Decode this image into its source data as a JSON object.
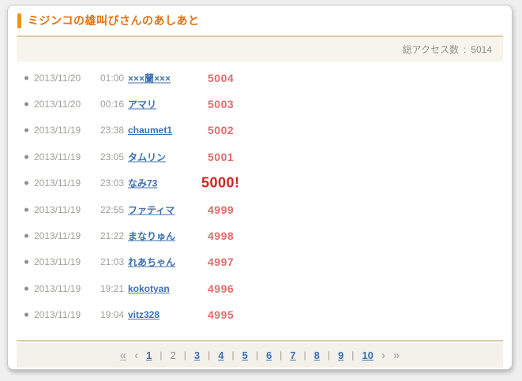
{
  "header": {
    "title": "ミジンコの雄叫びさんのあしあと"
  },
  "stats": {
    "label": "総アクセス数",
    "separator": ":",
    "value": "5014"
  },
  "visitors": [
    {
      "date": "2013/11/20",
      "time": "01:00",
      "user": "×××蘭×××",
      "count": "5004",
      "highlight": false
    },
    {
      "date": "2013/11/20",
      "time": "00:16",
      "user": "アマリ",
      "count": "5003",
      "highlight": false
    },
    {
      "date": "2013/11/19",
      "time": "23:38",
      "user": "chaumet1",
      "count": "5002",
      "highlight": false
    },
    {
      "date": "2013/11/19",
      "time": "23:05",
      "user": "タムリン",
      "count": "5001",
      "highlight": false
    },
    {
      "date": "2013/11/19",
      "time": "23:03",
      "user": "なみ73",
      "count": "5000!",
      "highlight": true
    },
    {
      "date": "2013/11/19",
      "time": "22:55",
      "user": "ファティマ",
      "count": "4999",
      "highlight": false
    },
    {
      "date": "2013/11/19",
      "time": "21:22",
      "user": "まなりゅん",
      "count": "4998",
      "highlight": false
    },
    {
      "date": "2013/11/19",
      "time": "21:03",
      "user": "れあちゃん",
      "count": "4997",
      "highlight": false
    },
    {
      "date": "2013/11/19",
      "time": "19:21",
      "user": "kokotyan",
      "count": "4996",
      "highlight": false
    },
    {
      "date": "2013/11/19",
      "time": "19:04",
      "user": "vitz328",
      "count": "4995",
      "highlight": false
    }
  ],
  "pagination": {
    "first": "«",
    "prev": "‹",
    "next": "›",
    "last": "»",
    "separator": "|",
    "current": "2",
    "pages": [
      "1",
      "2",
      "3",
      "4",
      "5",
      "6",
      "7",
      "8",
      "9",
      "10"
    ]
  },
  "colors": {
    "accent_orange": "#e17110",
    "accent_bar": "#f0920e",
    "divider_tan": "#d9cba8",
    "link_blue": "#3d6fb2",
    "count_red": "#e26b6b",
    "milestone_red": "#d42222",
    "muted_gray": "#a09e99"
  }
}
